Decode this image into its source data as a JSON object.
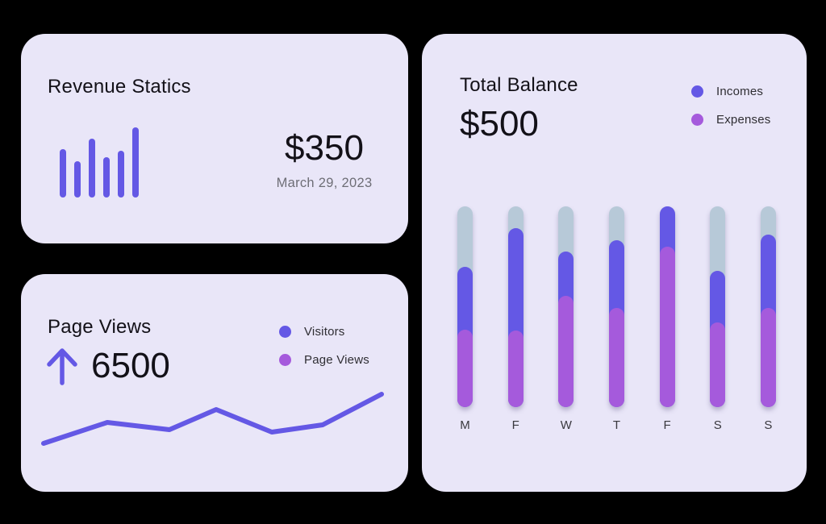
{
  "page": {
    "background": "#000000"
  },
  "colors": {
    "card_background": "#E9E6F8",
    "indigo": "#6458E5",
    "purple": "#A55ADC",
    "track": "#B7C9D8",
    "text_dark": "#131118",
    "text_gray": "#6E6E76",
    "text_mid": "#2F2E33"
  },
  "revenue_card": {
    "title": "Revenue Statics",
    "amount": "$350",
    "date": "March 29, 2023",
    "mini_bars": [
      60,
      45,
      73,
      50,
      58,
      87
    ]
  },
  "pageviews_card": {
    "title": "Page Views",
    "value": "6500",
    "trend_icon": "up-arrow",
    "legend": [
      {
        "label": "Visitors",
        "color": "#6458E5"
      },
      {
        "label": "Page Views",
        "color": "#A55ADC"
      }
    ],
    "line_points": [
      [
        28,
        210
      ],
      [
        107,
        184
      ],
      [
        184,
        193
      ],
      [
        242,
        168
      ],
      [
        311,
        196
      ],
      [
        374,
        187
      ],
      [
        447,
        149
      ]
    ]
  },
  "balance_card": {
    "title": "Total Balance",
    "amount": "$500",
    "legend": [
      {
        "label": "Incomes",
        "color": "#6458E5"
      },
      {
        "label": "Expenses",
        "color": "#A55ADC"
      }
    ],
    "bars": [
      {
        "day": "M",
        "stack_pct": 70,
        "expense_pct": 38.5
      },
      {
        "day": "F",
        "stack_pct": 89,
        "expense_pct": 38
      },
      {
        "day": "W",
        "stack_pct": 77.5,
        "expense_pct": 55.5
      },
      {
        "day": "T",
        "stack_pct": 83,
        "expense_pct": 49.5
      },
      {
        "day": "F",
        "stack_pct": 100,
        "expense_pct": 80
      },
      {
        "day": "S",
        "stack_pct": 68,
        "expense_pct": 42
      },
      {
        "day": "S",
        "stack_pct": 86,
        "expense_pct": 49.5
      }
    ]
  },
  "chart_data": [
    {
      "type": "bar",
      "title": "Revenue Statics",
      "categories": [
        "",
        "",
        "",
        "",
        "",
        ""
      ],
      "values": [
        60,
        45,
        73,
        50,
        58,
        87
      ],
      "ylim": [
        0,
        90
      ],
      "annotations": [
        "$350",
        "March 29, 2023"
      ],
      "note": "decorative indigo mini bar chart, no axes or gridlines"
    },
    {
      "type": "line",
      "title": "Page Views",
      "current_value": "6500",
      "legend_entries": [
        "Visitors",
        "Page Views"
      ],
      "legend_position": "top-right",
      "x": [
        1,
        2,
        3,
        4,
        5,
        6,
        7
      ],
      "relative_values": [
        13,
        45,
        34,
        65,
        30,
        41,
        89
      ],
      "ylim": [
        0,
        100
      ],
      "note": "single indigo polyline, no axes, ticks or gridlines; values estimated from pixel heights"
    },
    {
      "type": "bar",
      "title": "Total Balance",
      "current_value": "$500",
      "categories": [
        "M",
        "F",
        "W",
        "T",
        "F",
        "S",
        "S"
      ],
      "series": [
        {
          "name": "Expenses",
          "values": [
            38.5,
            38,
            55.5,
            49.5,
            80,
            42,
            49.5
          ]
        },
        {
          "name": "Incomes",
          "values": [
            31.5,
            51,
            22,
            33.5,
            20,
            26,
            36.5
          ]
        }
      ],
      "stacked": true,
      "ylim": [
        0,
        100
      ],
      "legend_entries": [
        "Incomes",
        "Expenses"
      ],
      "legend_position": "top-right",
      "note": "rounded pill bars over light blue-gray full-height tracks; values are % of track height"
    }
  ]
}
